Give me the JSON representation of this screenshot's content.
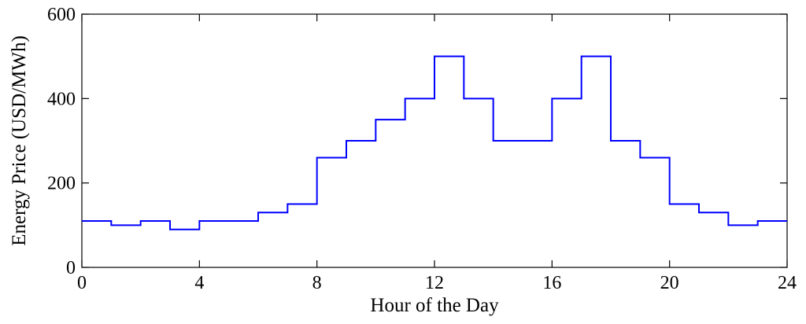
{
  "chart_data": {
    "type": "line",
    "step": "post",
    "xlabel": "Hour of the Day",
    "ylabel": "Energy Price (USD/MWh)",
    "xlim": [
      0,
      24
    ],
    "ylim": [
      0,
      600
    ],
    "xticks": [
      0,
      4,
      8,
      12,
      16,
      20,
      24
    ],
    "yticks": [
      0,
      200,
      400,
      600
    ],
    "grid": false,
    "series": [
      {
        "color": "#0000ff",
        "x": [
          0,
          1,
          2,
          3,
          4,
          5,
          6,
          7,
          8,
          9,
          10,
          11,
          12,
          13,
          14,
          15,
          16,
          17,
          18,
          19,
          20,
          21,
          22,
          23,
          24
        ],
        "y": [
          110,
          100,
          110,
          90,
          110,
          110,
          130,
          150,
          260,
          300,
          350,
          400,
          500,
          400,
          300,
          300,
          400,
          500,
          300,
          260,
          150,
          130,
          100,
          110,
          110
        ]
      }
    ]
  }
}
